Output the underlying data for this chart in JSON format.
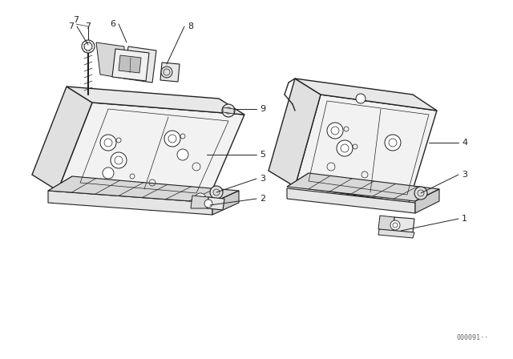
{
  "bg_color": "#ffffff",
  "line_color": "#222222",
  "fig_width": 6.4,
  "fig_height": 4.48,
  "dpi": 100,
  "watermark": "000091··"
}
